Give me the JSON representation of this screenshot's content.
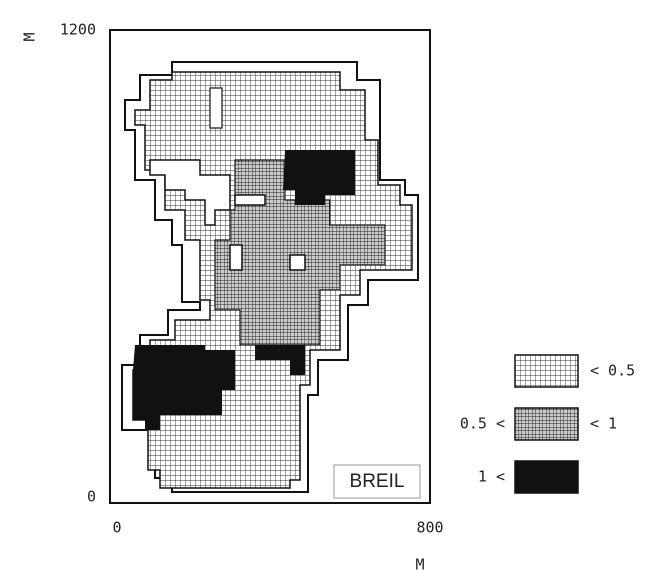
{
  "map": {
    "label": "BREIL",
    "x_axis": {
      "label": "M",
      "lim": [
        0,
        800
      ],
      "ticks": [
        0,
        800
      ]
    },
    "y_axis": {
      "label": "M",
      "lim": [
        0,
        1200
      ],
      "ticks": [
        0,
        1200
      ]
    },
    "legend": [
      {
        "right": "< 0.5"
      },
      {
        "left": "0.5 <",
        "right": "< 1"
      },
      {
        "left": "1 <"
      }
    ]
  }
}
